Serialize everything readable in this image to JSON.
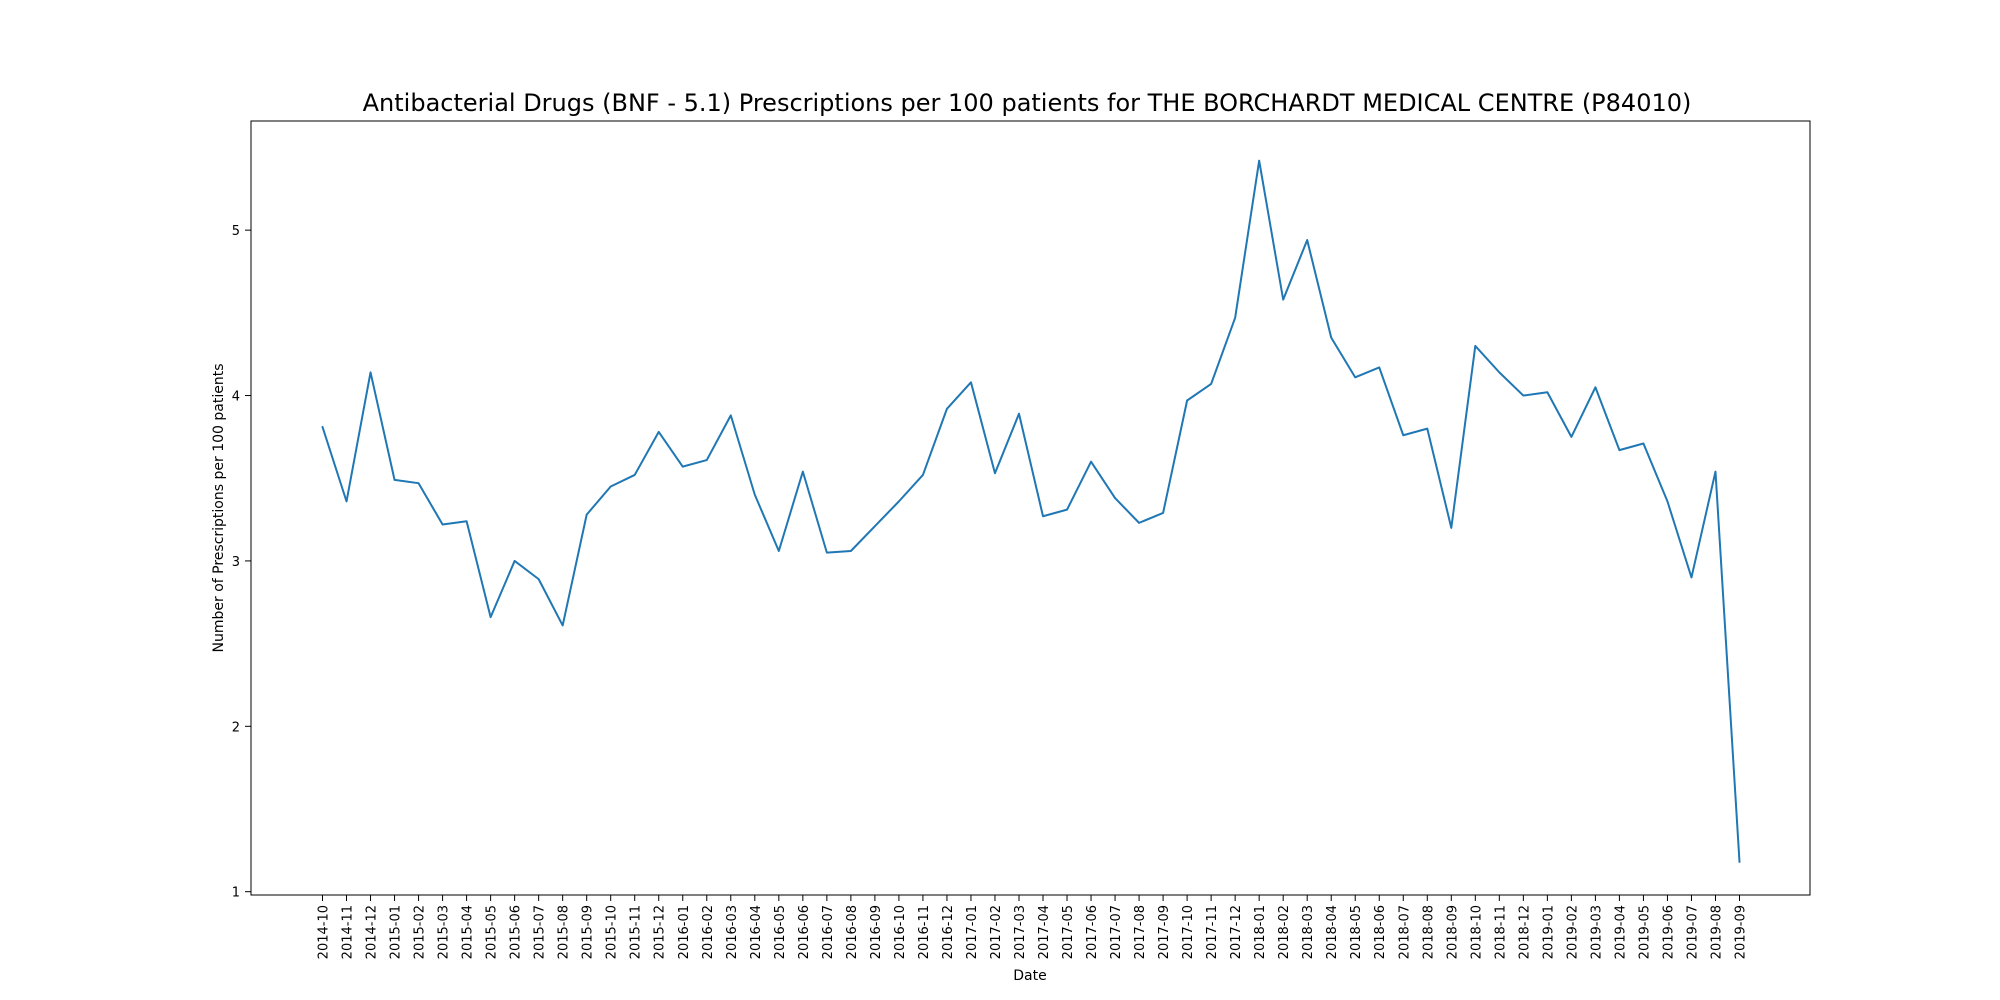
{
  "chart_data": {
    "type": "line",
    "title": "Antibacterial Drugs (BNF - 5.1) Prescriptions per 100 patients for THE BORCHARDT MEDICAL CENTRE (P84010)",
    "xlabel": "Date",
    "ylabel": "Number of Prescriptions per 100 patients",
    "ylim": [
      0.98,
      5.66
    ],
    "yticks": [
      1,
      2,
      3,
      4,
      5
    ],
    "grid": false,
    "line_color": "#1f77b4",
    "categories": [
      "2014-10",
      "2014-11",
      "2014-12",
      "2015-01",
      "2015-02",
      "2015-03",
      "2015-04",
      "2015-05",
      "2015-06",
      "2015-07",
      "2015-08",
      "2015-09",
      "2015-10",
      "2015-11",
      "2015-12",
      "2016-01",
      "2016-02",
      "2016-03",
      "2016-04",
      "2016-05",
      "2016-06",
      "2016-07",
      "2016-08",
      "2016-09",
      "2016-10",
      "2016-11",
      "2016-12",
      "2017-01",
      "2017-02",
      "2017-03",
      "2017-04",
      "2017-05",
      "2017-06",
      "2017-07",
      "2017-08",
      "2017-09",
      "2017-10",
      "2017-11",
      "2017-12",
      "2018-01",
      "2018-02",
      "2018-03",
      "2018-04",
      "2018-05",
      "2018-06",
      "2018-07",
      "2018-08",
      "2018-09",
      "2018-10",
      "2018-11",
      "2018-12",
      "2019-01",
      "2019-02",
      "2019-03",
      "2019-04",
      "2019-05",
      "2019-06",
      "2019-07",
      "2019-08",
      "2019-09"
    ],
    "values": [
      3.81,
      3.36,
      4.14,
      3.49,
      3.47,
      3.22,
      3.24,
      2.66,
      3.0,
      2.89,
      2.61,
      3.28,
      3.45,
      3.52,
      3.78,
      3.57,
      3.61,
      3.88,
      3.4,
      3.06,
      3.54,
      3.05,
      3.06,
      3.21,
      3.36,
      3.52,
      3.92,
      4.08,
      3.53,
      3.89,
      3.27,
      3.31,
      3.6,
      3.38,
      3.23,
      3.29,
      3.97,
      4.07,
      4.47,
      5.42,
      4.58,
      4.94,
      4.35,
      4.11,
      4.17,
      3.76,
      3.8,
      3.2,
      4.3,
      4.14,
      4.0,
      4.02,
      3.75,
      4.05,
      3.67,
      3.71,
      3.36,
      2.9,
      3.54,
      1.18
    ]
  }
}
